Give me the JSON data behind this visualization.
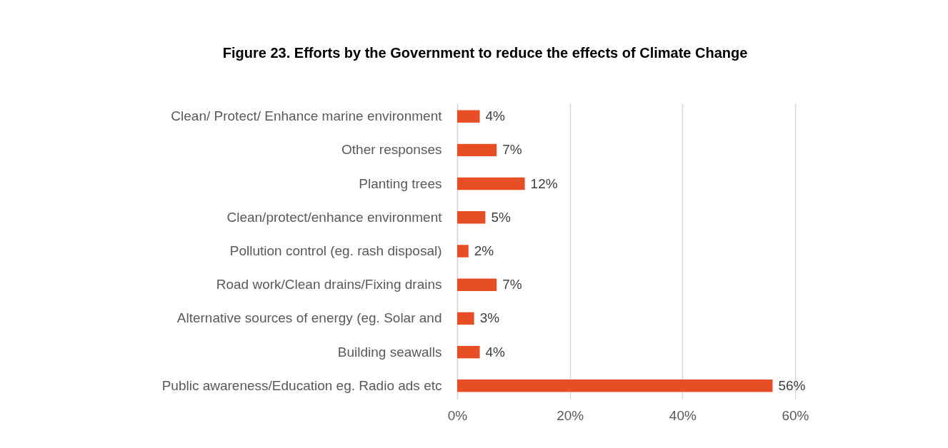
{
  "chart_data": {
    "type": "bar",
    "orientation": "horizontal",
    "title": "Figure 23. Efforts by the Government to reduce the effects of Climate Change",
    "categories": [
      "Clean/ Protect/ Enhance marine environment",
      "Other responses",
      "Planting trees",
      "Clean/protect/enhance environment",
      "Pollution control (eg. rash disposal)",
      "Road work/Clean drains/Fixing drains",
      "Alternative sources of energy (eg. Solar and",
      "Building seawalls",
      "Public awareness/Education eg. Radio ads etc"
    ],
    "values": [
      4,
      7,
      12,
      5,
      2,
      7,
      3,
      4,
      56
    ],
    "value_labels": [
      "4%",
      "7%",
      "12%",
      "5%",
      "2%",
      "7%",
      "3%",
      "4%",
      "56%"
    ],
    "color": "#e84e25",
    "xlim": [
      0,
      60
    ],
    "xticks": [
      {
        "value": 0,
        "label": "0%"
      },
      {
        "value": 20,
        "label": "20%"
      },
      {
        "value": 40,
        "label": "40%"
      },
      {
        "value": 60,
        "label": "60%"
      }
    ],
    "grid": "x"
  }
}
